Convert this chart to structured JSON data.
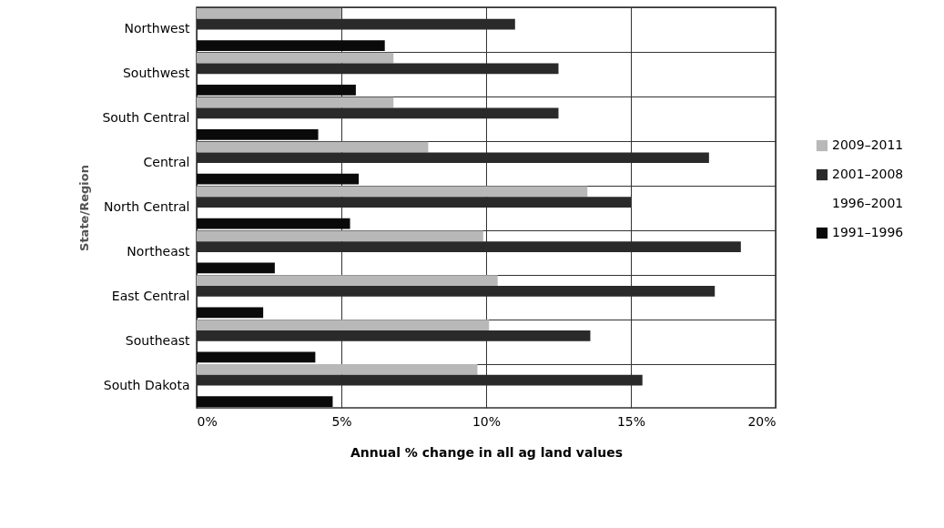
{
  "chart_data": {
    "type": "bar",
    "orientation": "horizontal",
    "xlabel": "Annual % change in all ag land values",
    "ylabel": "State/Region",
    "categories": [
      "Northwest",
      "Southwest",
      "South Central",
      "Central",
      "North Central",
      "Northeast",
      "East Central",
      "Southeast",
      "South Dakota"
    ],
    "series": [
      {
        "name": "2009–2011",
        "color": "#b8b8b8",
        "values": [
          5.0,
          6.8,
          6.8,
          8.0,
          13.5,
          9.9,
          10.4,
          10.1,
          9.7
        ]
      },
      {
        "name": "2001–2008",
        "color": "#2a2a2a",
        "values": [
          11.0,
          12.5,
          12.5,
          17.7,
          15.0,
          18.8,
          17.9,
          13.6,
          15.4
        ]
      },
      {
        "name": "1996–2001",
        "values": [
          null,
          null,
          null,
          null,
          null,
          null,
          null,
          null,
          null
        ]
      },
      {
        "name": "1991–1996",
        "color": "#0a0a0a",
        "values": [
          6.5,
          5.5,
          4.2,
          5.6,
          5.3,
          2.7,
          2.3,
          4.1,
          4.7
        ]
      }
    ],
    "xlim": [
      0,
      20
    ],
    "xticks": [
      {
        "value": 0,
        "label": "0%"
      },
      {
        "value": 5,
        "label": "5%"
      },
      {
        "value": 10,
        "label": "10%"
      },
      {
        "value": 15,
        "label": "15%"
      },
      {
        "value": 20,
        "label": "20%"
      }
    ],
    "grid": true,
    "legend": "right"
  }
}
